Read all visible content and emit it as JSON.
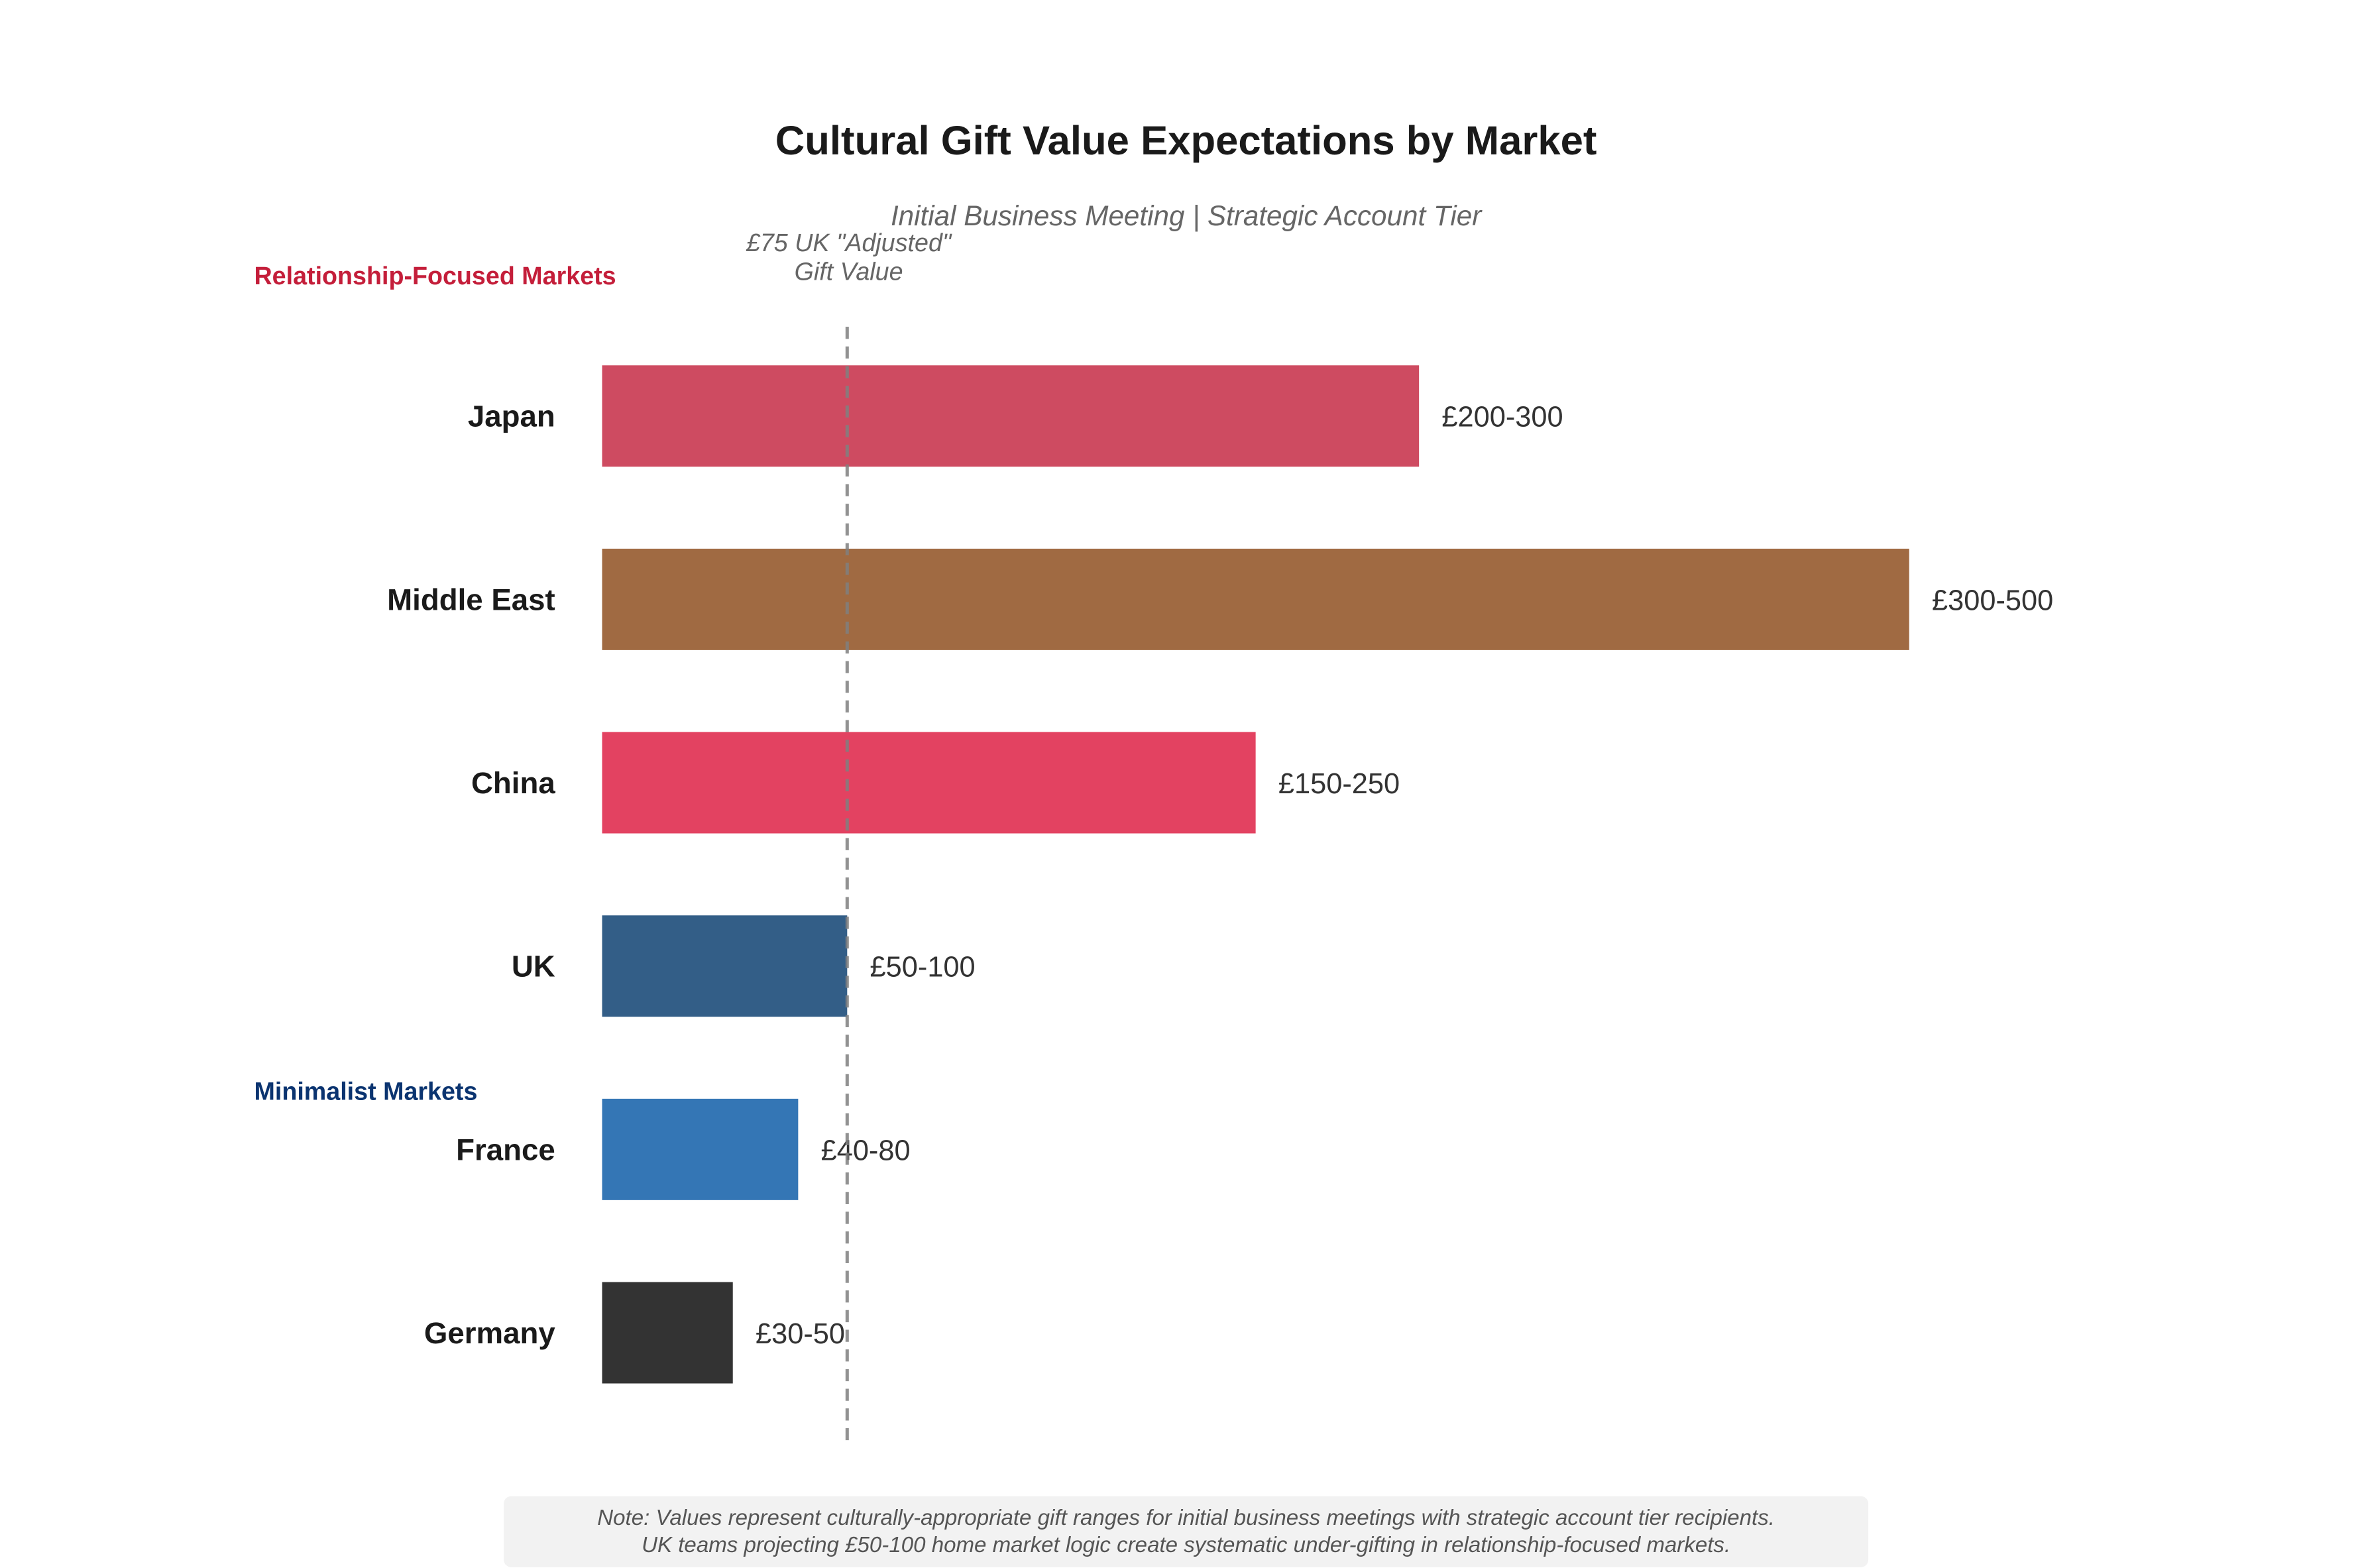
{
  "chart_data": {
    "type": "bar",
    "orientation": "horizontal",
    "title": "Cultural Gift Value Expectations by Market",
    "subtitle": "Initial Business Meeting | Strategic Account Tier",
    "categories": [
      "Japan",
      "Middle East",
      "China",
      "UK",
      "France",
      "Germany"
    ],
    "values": [
      250,
      400,
      200,
      75,
      60,
      40
    ],
    "range_labels": [
      "£200-300",
      "£300-500",
      "£150-250",
      "£50-100",
      "£40-80",
      "£30-50"
    ],
    "colors": [
      "#CE4B61",
      "#A06A42",
      "#E34261",
      "#335E87",
      "#3476B5",
      "#333333"
    ],
    "xlim": [
      0,
      480
    ],
    "x_axis_visible": false,
    "grid": false,
    "reference_line": {
      "value": 75,
      "label_line1": "£75 UK \"Adjusted\"",
      "label_line2": "Gift Value",
      "style": "dashed",
      "color": "#808080"
    },
    "group_labels": [
      {
        "text": "Relationship-Focused Markets",
        "color": "#C41E3A"
      },
      {
        "text": "Minimalist Markets",
        "color": "#0B3470"
      }
    ],
    "note_line1": "Note: Values represent culturally-appropriate gift ranges for initial business meetings with strategic account tier recipients.",
    "note_line2": "UK teams projecting £50-100 home market logic create systematic under-gifting in relationship-focused markets."
  }
}
